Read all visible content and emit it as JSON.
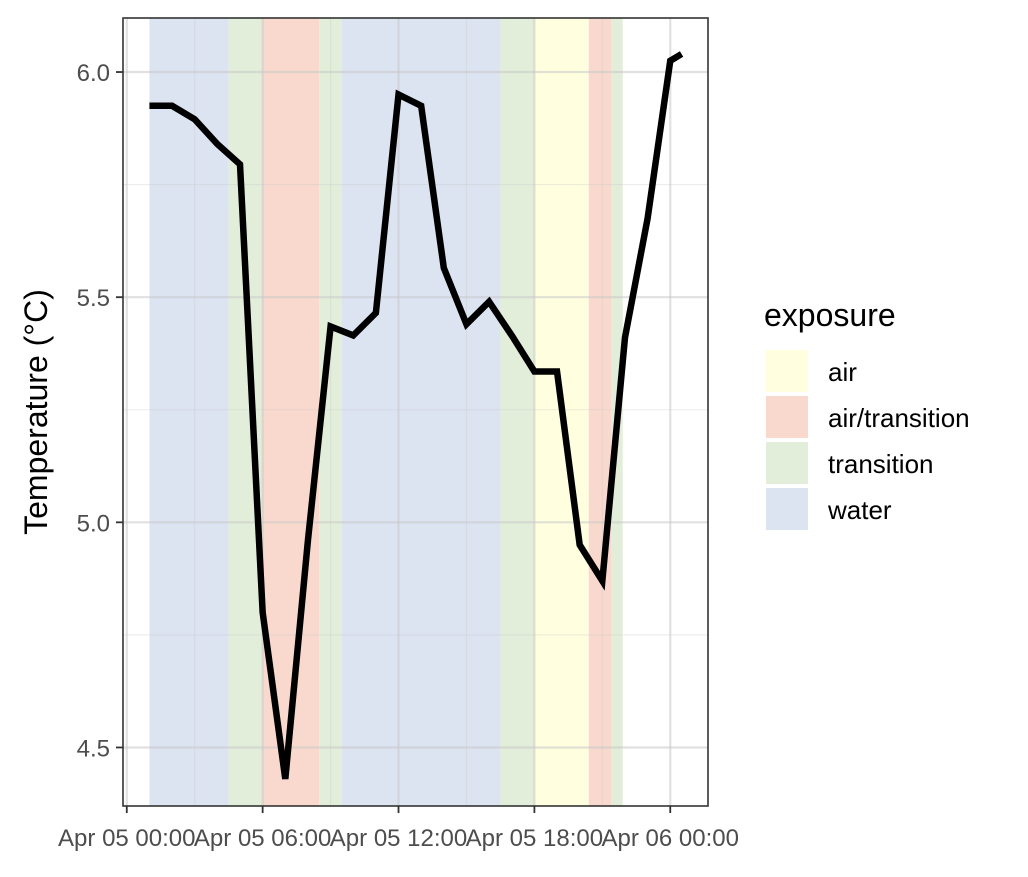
{
  "chart_data": {
    "type": "line",
    "title": "",
    "xlabel": "",
    "ylabel": "Temperature (°C)",
    "x_ticks": [
      "Apr 05 00:00",
      "Apr 05 06:00",
      "Apr 05 12:00",
      "Apr 05 18:00",
      "Apr 06 00:00"
    ],
    "y_ticks": [
      "4.5",
      "5.0",
      "5.5",
      "6.0"
    ],
    "xlim": [
      "2024-04-04T23:50",
      "2024-04-06T01:40"
    ],
    "ylim": [
      4.37,
      6.12
    ],
    "grid": true,
    "legend": {
      "title": "exposure",
      "position": "right",
      "items": [
        {
          "label": "air",
          "color": "#FFFFE0"
        },
        {
          "label": "air/transition",
          "color": "#F9D9CD"
        },
        {
          "label": "transition",
          "color": "#E2EEDA"
        },
        {
          "label": "water",
          "color": "#DCE3F1"
        }
      ]
    },
    "exposure_bands": [
      {
        "start": "2024-04-05T01:00",
        "end": "2024-04-05T04:30",
        "exposure": "water"
      },
      {
        "start": "2024-04-05T04:30",
        "end": "2024-04-05T06:00",
        "exposure": "transition"
      },
      {
        "start": "2024-04-05T06:00",
        "end": "2024-04-05T08:30",
        "exposure": "air/transition"
      },
      {
        "start": "2024-04-05T08:30",
        "end": "2024-04-05T09:30",
        "exposure": "transition"
      },
      {
        "start": "2024-04-05T09:30",
        "end": "2024-04-05T16:30",
        "exposure": "water"
      },
      {
        "start": "2024-04-05T16:30",
        "end": "2024-04-05T18:00",
        "exposure": "transition"
      },
      {
        "start": "2024-04-05T18:00",
        "end": "2024-04-05T20:24",
        "exposure": "air"
      },
      {
        "start": "2024-04-05T20:24",
        "end": "2024-04-05T21:24",
        "exposure": "air/transition"
      },
      {
        "start": "2024-04-05T21:24",
        "end": "2024-04-05T21:54",
        "exposure": "transition"
      }
    ],
    "series": [
      {
        "color": "#000000",
        "points": [
          [
            "2024-04-05T01:00",
            5.925
          ],
          [
            "2024-04-05T02:00",
            5.925
          ],
          [
            "2024-04-05T03:00",
            5.895
          ],
          [
            "2024-04-05T04:00",
            5.84
          ],
          [
            "2024-04-05T05:00",
            5.795
          ],
          [
            "2024-04-05T06:00",
            4.8
          ],
          [
            "2024-04-05T07:00",
            4.43
          ],
          [
            "2024-04-05T08:00",
            4.96
          ],
          [
            "2024-04-05T09:00",
            5.435
          ],
          [
            "2024-04-05T10:00",
            5.415
          ],
          [
            "2024-04-05T11:00",
            5.465
          ],
          [
            "2024-04-05T12:00",
            5.95
          ],
          [
            "2024-04-05T13:00",
            5.925
          ],
          [
            "2024-04-05T14:00",
            5.565
          ],
          [
            "2024-04-05T15:00",
            5.44
          ],
          [
            "2024-04-05T16:00",
            5.49
          ],
          [
            "2024-04-05T17:00",
            5.415
          ],
          [
            "2024-04-05T18:00",
            5.335
          ],
          [
            "2024-04-05T19:00",
            5.335
          ],
          [
            "2024-04-05T20:00",
            4.95
          ],
          [
            "2024-04-05T21:00",
            4.87
          ],
          [
            "2024-04-05T22:00",
            5.41
          ],
          [
            "2024-04-05T23:00",
            5.675
          ],
          [
            "2024-04-06T00:00",
            6.025
          ],
          [
            "2024-04-06T00:30",
            6.04
          ]
        ]
      }
    ]
  }
}
